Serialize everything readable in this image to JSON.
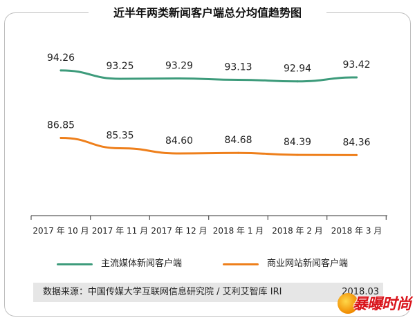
{
  "title": "近半年两类新闻客户端总分均值趋势图",
  "chart_data": {
    "type": "line",
    "title": "近半年两类新闻客户端总分均值趋势图",
    "xlabel": "",
    "ylabel": "",
    "grid": false,
    "legend_position": "bottom",
    "categories": [
      "2017 年 10 月",
      "2017 年 11 月",
      "2017 年 12 月",
      "2018 年 1 月",
      "2018 年 2 月",
      "2018 年 3 月"
    ],
    "series": [
      {
        "name": "主流媒体新闻客户端",
        "color": "#3d9b7b",
        "values": [
          94.26,
          93.25,
          93.29,
          93.13,
          92.94,
          93.42
        ],
        "labels": [
          "94.26",
          "93.25",
          "93.29",
          "93.13",
          "92.94",
          "93.42"
        ]
      },
      {
        "name": "商业网站新闻客户端",
        "color": "#ee7f1b",
        "values": [
          86.85,
          85.35,
          84.6,
          84.68,
          84.39,
          84.36
        ],
        "labels": [
          "86.85",
          "85.35",
          "84.60",
          "84.68",
          "84.39",
          "84.36"
        ]
      }
    ]
  },
  "source": {
    "text": "数据来源：中国传媒大学互联网信息研究院 / 艾利艾智库 IRI",
    "date": "2018.03"
  },
  "logo": {
    "text": "暴曝时尚",
    "icon": "sun-icon"
  }
}
